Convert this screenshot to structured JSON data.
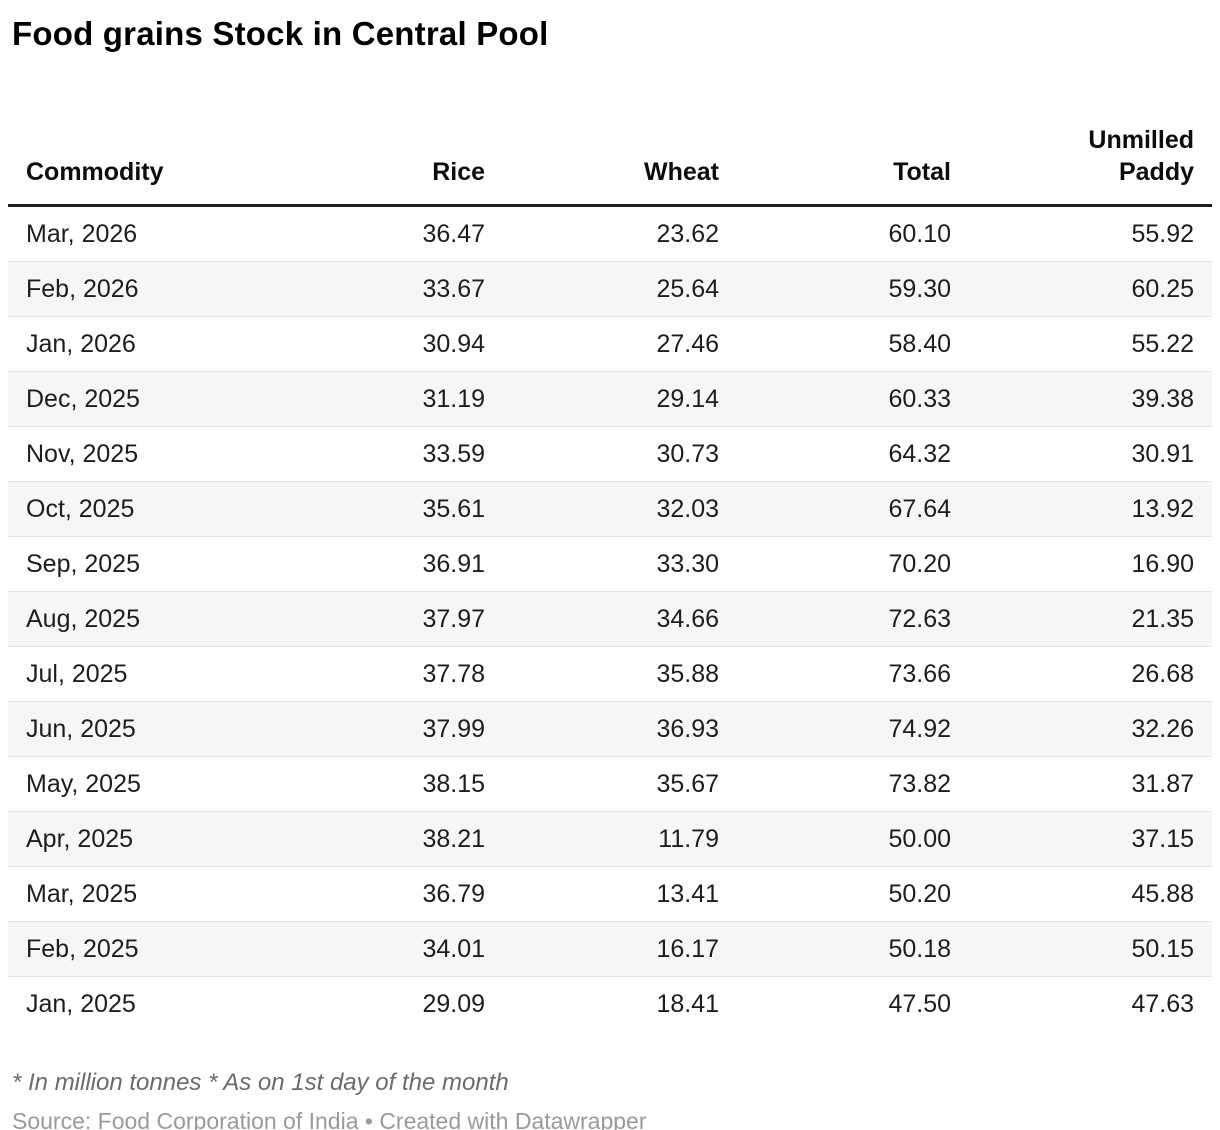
{
  "title": "Food grains Stock in Central Pool",
  "chart_data": {
    "type": "table",
    "title": "Food grains Stock in Central Pool",
    "columns": [
      "Commodity",
      "Rice",
      "Wheat",
      "Total",
      "Unmilled Paddy"
    ],
    "rows": [
      [
        "Mar, 2026",
        "36.47",
        "23.62",
        "60.10",
        "55.92"
      ],
      [
        "Feb, 2026",
        "33.67",
        "25.64",
        "59.30",
        "60.25"
      ],
      [
        "Jan, 2026",
        "30.94",
        "27.46",
        "58.40",
        "55.22"
      ],
      [
        "Dec, 2025",
        "31.19",
        "29.14",
        "60.33",
        "39.38"
      ],
      [
        "Nov, 2025",
        "33.59",
        "30.73",
        "64.32",
        "30.91"
      ],
      [
        "Oct, 2025",
        "35.61",
        "32.03",
        "67.64",
        "13.92"
      ],
      [
        "Sep, 2025",
        "36.91",
        "33.30",
        "70.20",
        "16.90"
      ],
      [
        "Aug, 2025",
        "37.97",
        "34.66",
        "72.63",
        "21.35"
      ],
      [
        "Jul, 2025",
        "37.78",
        "35.88",
        "73.66",
        "26.68"
      ],
      [
        "Jun, 2025",
        "37.99",
        "36.93",
        "74.92",
        "32.26"
      ],
      [
        "May, 2025",
        "38.15",
        "35.67",
        "73.82",
        "31.87"
      ],
      [
        "Apr, 2025",
        "38.21",
        "11.79",
        "50.00",
        "37.15"
      ],
      [
        "Mar, 2025",
        "36.79",
        "13.41",
        "50.20",
        "45.88"
      ],
      [
        "Feb, 2025",
        "34.01",
        "16.17",
        "50.18",
        "50.15"
      ],
      [
        "Jan, 2025",
        "29.09",
        "18.41",
        "47.50",
        "47.63"
      ]
    ],
    "layout_hints": {
      "striped_rows": true,
      "first_column_align": "left",
      "value_columns_align": "right"
    },
    "units_note": "* In million tonnes * As on 1st day of the month"
  },
  "footer": {
    "note": "* In million tonnes * As on 1st day of the month",
    "source": "Source: Food Corporation of India • Created with Datawrapper"
  },
  "colors": {
    "title_text": "#000000",
    "header_text": "#0d0d0d",
    "header_border": "#1f1f1f",
    "body_text": "#1d1d1d",
    "row_stripe": "#f6f6f6",
    "row_border": "#e3e3e3",
    "note_text": "#6b6b6b",
    "source_text": "#9a9a9a",
    "background": "#ffffff"
  }
}
